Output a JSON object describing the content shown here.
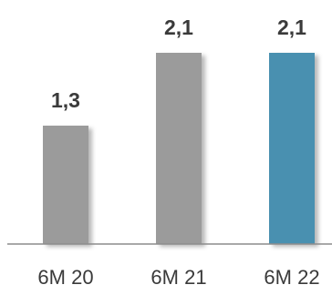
{
  "chart_data": {
    "type": "bar",
    "categories": [
      "6M 20",
      "6M 21",
      "6M 22"
    ],
    "values": [
      1.3,
      2.1,
      2.1
    ],
    "value_labels": [
      "1,3",
      "2,1",
      "2,1"
    ],
    "title": "",
    "xlabel": "",
    "ylabel": "",
    "ylim": [
      0,
      2.1
    ],
    "grid": false,
    "legend": "none",
    "colors": [
      "#9b9b9b",
      "#9b9b9b",
      "#4a90b0"
    ],
    "axis_color": "#8c8c8c"
  }
}
